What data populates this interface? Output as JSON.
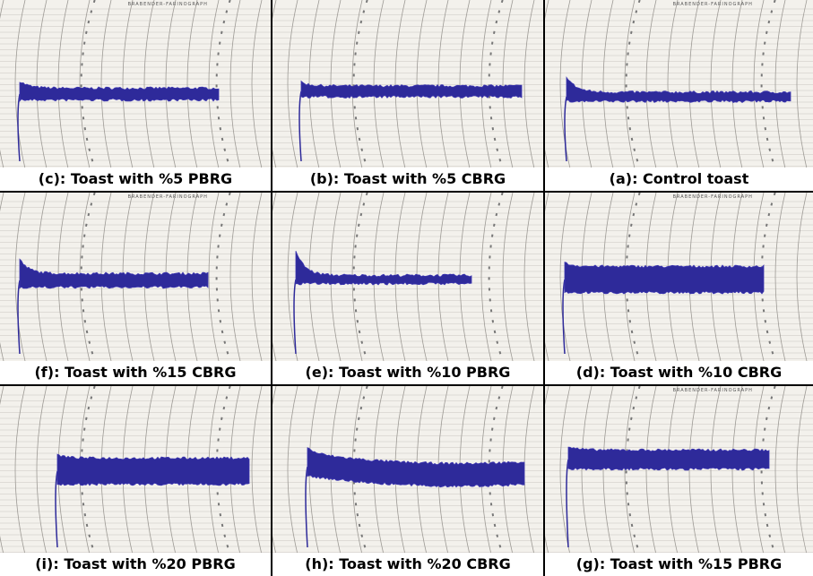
{
  "panels": [
    {
      "caption": "(c): Toast with %5 PBRG",
      "header": "BRABENDER-FARINOGRAPH"
    },
    {
      "caption": "(b): Toast with %5 CBRG"
    },
    {
      "caption": "(a): Control toast",
      "header": "BRABENDER-FARINOGRAPH"
    },
    {
      "caption": "(f): Toast with %15 CBRG",
      "header": "BRABENDER-FARINOGRAPH"
    },
    {
      "caption": "(e): Toast with %10 PBRG"
    },
    {
      "caption": "(d): Toast with %10 CBRG",
      "header": "BRABENDER-FARINOGRAPH"
    },
    {
      "caption": "(i): Toast with %20 PBRG"
    },
    {
      "caption": "(h): Toast with %20 CBRG"
    },
    {
      "caption": "(g): Toast with %15 PBRG",
      "header": "BRABENDER-FARINOGRAPH"
    }
  ]
}
